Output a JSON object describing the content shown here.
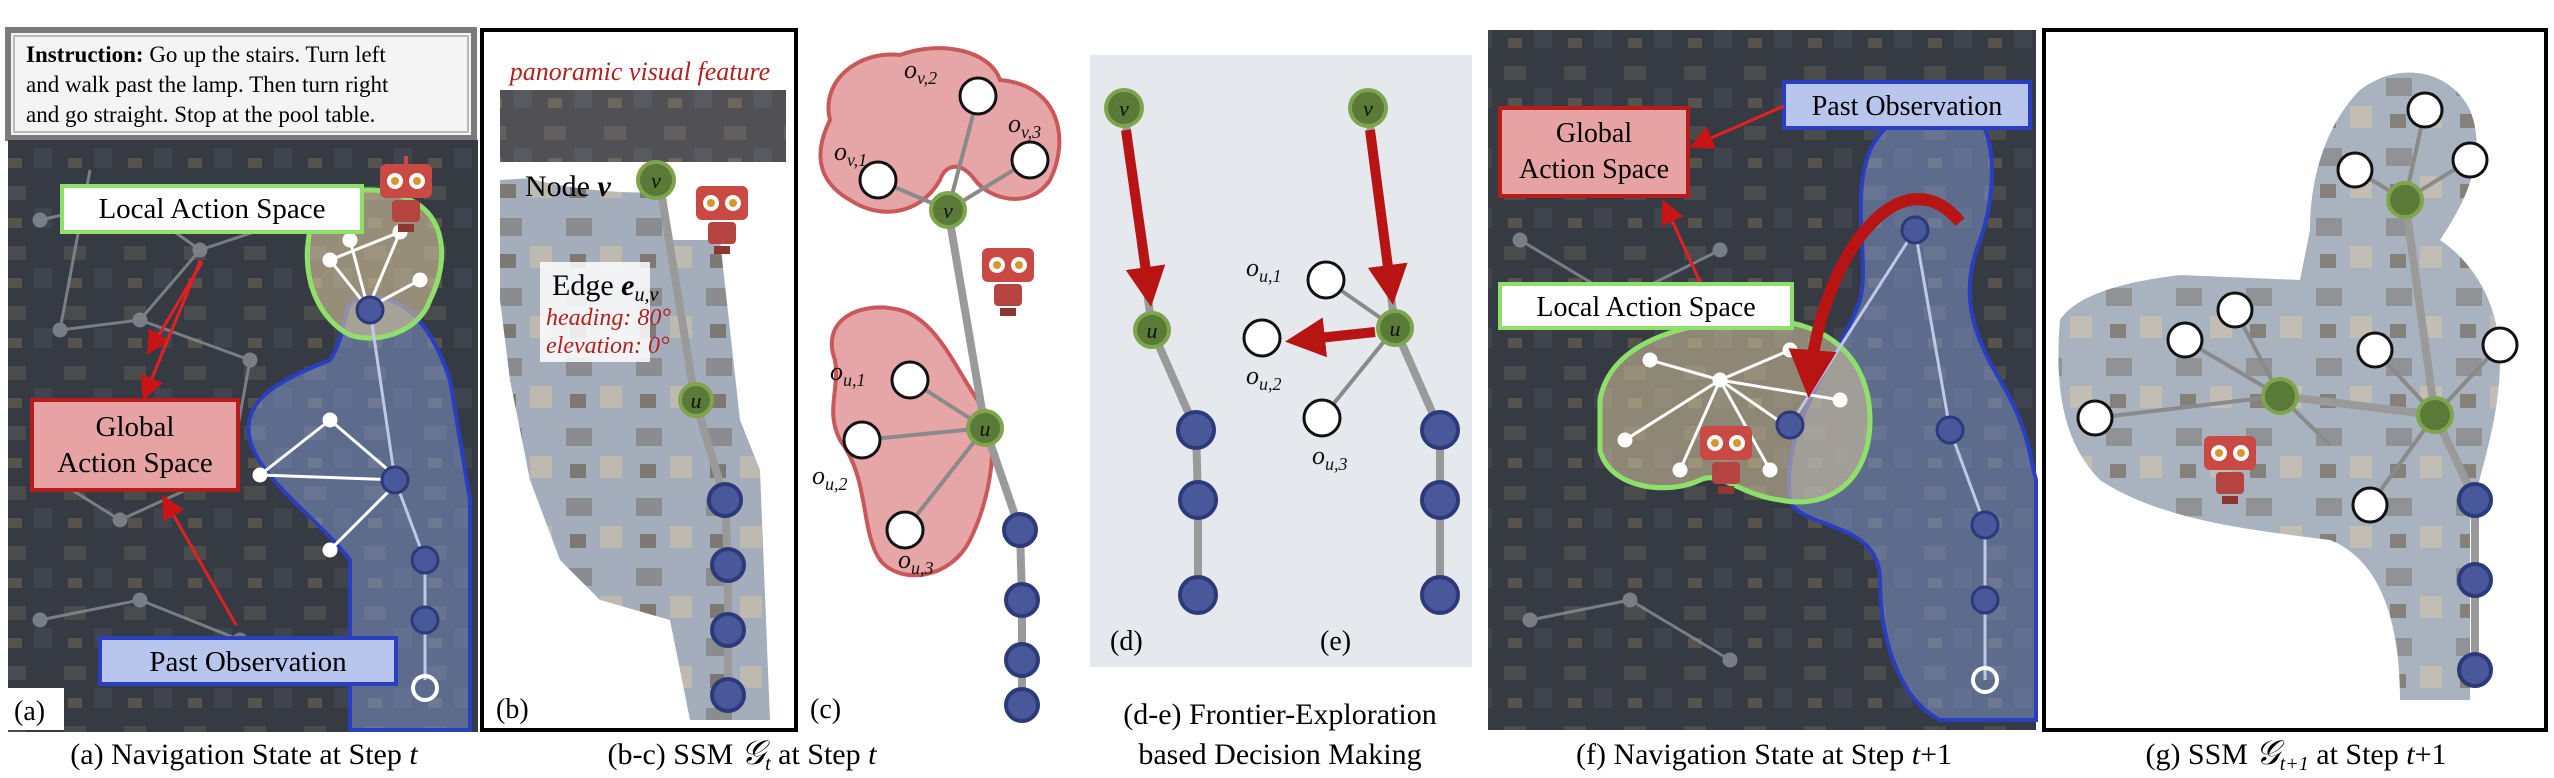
{
  "instruction": {
    "label": "Instruction:",
    "line1": " Go up the stairs. Turn left",
    "line2": "and walk past the lamp. Then turn right",
    "line3": "and go straight. Stop at the pool table."
  },
  "panel_a": {
    "tag": "(a)",
    "local_action_space": "Local Action Space",
    "global_action_space_1": "Global",
    "global_action_space_2": "Action Space",
    "past_observation": "Past Observation",
    "caption_prefix": "(a) Navigation State at Step ",
    "caption_var": "t"
  },
  "panel_b": {
    "tag": "(b)",
    "panoramic_label": "panoramic visual feature",
    "node_label": "Node ",
    "node_var": "v",
    "edge_label": "Edge ",
    "edge_var": "e",
    "edge_sub": "u,v",
    "heading": "heading: 80°",
    "elevation": "elevation: 0°",
    "caption_prefix": "(b-c) SSM ",
    "caption_symbol": "𝒢",
    "caption_sub": "t",
    "caption_suffix": " at Step ",
    "caption_var": "t"
  },
  "panel_c": {
    "tag": "(c)",
    "ov1": "o",
    "ov1_sub": "v,1",
    "ov2_sub": "v,2",
    "ov3_sub": "v,3",
    "ou1_sub": "u,1",
    "ou2_sub": "u,2",
    "ou3_sub": "u,3",
    "node_v": "v",
    "node_u": "u"
  },
  "panel_de": {
    "tag_d": "(d)",
    "tag_e": "(e)",
    "caption_line1": "(d-e)  Frontier-Exploration",
    "caption_line2": "based Decision Making"
  },
  "panel_f": {
    "past_observation": "Past Observation",
    "global_action_space_1": "Global",
    "global_action_space_2": "Action Space",
    "local_action_space": "Local Action Space",
    "caption_prefix": "(f) Navigation State at Step ",
    "caption_var": "t",
    "caption_suffix": "+1"
  },
  "panel_g": {
    "caption_prefix": "(g) SSM ",
    "caption_symbol": "𝒢",
    "caption_sub": "t+1",
    "caption_suffix": " at Step ",
    "caption_var": "t",
    "caption_end": "+1"
  },
  "colors": {
    "red_region": "#c9585a",
    "red_fill": "#e6a5a6",
    "blue_region": "#2a3ec2",
    "blue_fill": "#b6c4ea",
    "green": "#8fe06a",
    "node_green": "#5a7a38",
    "node_blue": "#48589a",
    "arrow_red": "#b81414"
  }
}
